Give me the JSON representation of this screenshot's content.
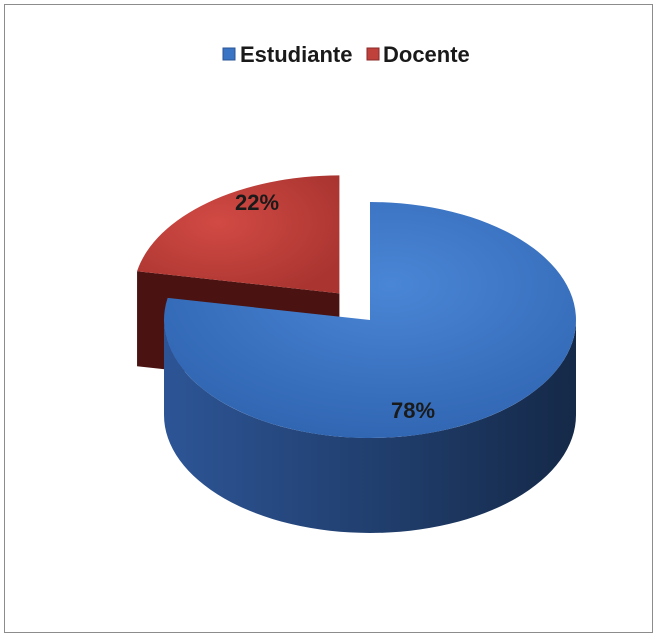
{
  "chart_data": {
    "type": "pie",
    "style": "3d-exploded",
    "legend_position": "top",
    "categories": [
      "Estudiante",
      "Docente"
    ],
    "values": [
      78,
      22
    ],
    "labels": [
      "78%",
      "22%"
    ],
    "colors": [
      "#3a74c4",
      "#c0403c"
    ],
    "side_colors": [
      "#223f6e",
      "#5a1512"
    ]
  }
}
